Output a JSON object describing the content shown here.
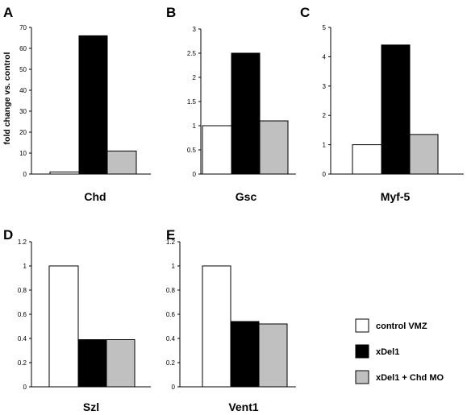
{
  "ylabel": "fold change vs. control",
  "legend": [
    {
      "label": "control VMZ",
      "color": "#ffffff"
    },
    {
      "label": "xDel1",
      "color": "#000000"
    },
    {
      "label": "xDel1 + Chd MO",
      "color": "#c0c0c0"
    }
  ],
  "chart_data": [
    {
      "type": "bar",
      "panel": "A",
      "xlabel": "Chd",
      "series": [
        {
          "name": "control VMZ",
          "values": [
            1
          ]
        },
        {
          "name": "xDel1",
          "values": [
            66
          ]
        },
        {
          "name": "xDel1 + Chd MO",
          "values": [
            11
          ]
        }
      ],
      "ylim": [
        0,
        70
      ],
      "yticks": [
        0,
        10,
        20,
        30,
        40,
        50,
        60,
        70
      ],
      "yticklabels": [
        "0",
        "10",
        "20",
        "30",
        "40",
        "50",
        "60",
        "70"
      ]
    },
    {
      "type": "bar",
      "panel": "B",
      "xlabel": "Gsc",
      "series": [
        {
          "name": "control VMZ",
          "values": [
            1
          ]
        },
        {
          "name": "xDel1",
          "values": [
            2.5
          ]
        },
        {
          "name": "xDel1 + Chd MO",
          "values": [
            1.1
          ]
        }
      ],
      "ylim": [
        0,
        3
      ],
      "yticks": [
        0,
        0.5,
        1,
        1.5,
        2,
        2.5,
        3
      ],
      "yticklabels": [
        "0",
        "0.5",
        "1",
        "1.5",
        "2",
        "2.5",
        "3"
      ]
    },
    {
      "type": "bar",
      "panel": "C",
      "xlabel": "Myf-5",
      "series": [
        {
          "name": "control VMZ",
          "values": [
            1
          ]
        },
        {
          "name": "xDel1",
          "values": [
            4.4
          ]
        },
        {
          "name": "xDel1 + Chd MO",
          "values": [
            1.35
          ]
        }
      ],
      "ylim": [
        0,
        5
      ],
      "yticks": [
        0,
        1,
        2,
        3,
        4,
        5
      ],
      "yticklabels": [
        "0",
        "1",
        "2",
        "3",
        "4",
        "5"
      ]
    },
    {
      "type": "bar",
      "panel": "D",
      "xlabel": "Szl",
      "series": [
        {
          "name": "control VMZ",
          "values": [
            1
          ]
        },
        {
          "name": "xDel1",
          "values": [
            0.39
          ]
        },
        {
          "name": "xDel1 + Chd MO",
          "values": [
            0.39
          ]
        }
      ],
      "ylim": [
        0,
        1.2
      ],
      "yticks": [
        0,
        0.2,
        0.4,
        0.6,
        0.8,
        1,
        1.2
      ],
      "yticklabels": [
        "0",
        "0.2",
        "0.4",
        "0.6",
        "0.8",
        "1",
        "1.2"
      ]
    },
    {
      "type": "bar",
      "panel": "E",
      "xlabel": "Vent1",
      "series": [
        {
          "name": "control VMZ",
          "values": [
            1
          ]
        },
        {
          "name": "xDel1",
          "values": [
            0.54
          ]
        },
        {
          "name": "xDel1 + Chd MO",
          "values": [
            0.52
          ]
        }
      ],
      "ylim": [
        0,
        1.2
      ],
      "yticks": [
        0,
        0.2,
        0.4,
        0.6,
        0.8,
        1,
        1.2
      ],
      "yticklabels": [
        "0",
        "0.2",
        "0.4",
        "0.6",
        "0.8",
        "1",
        "1.2"
      ]
    }
  ]
}
